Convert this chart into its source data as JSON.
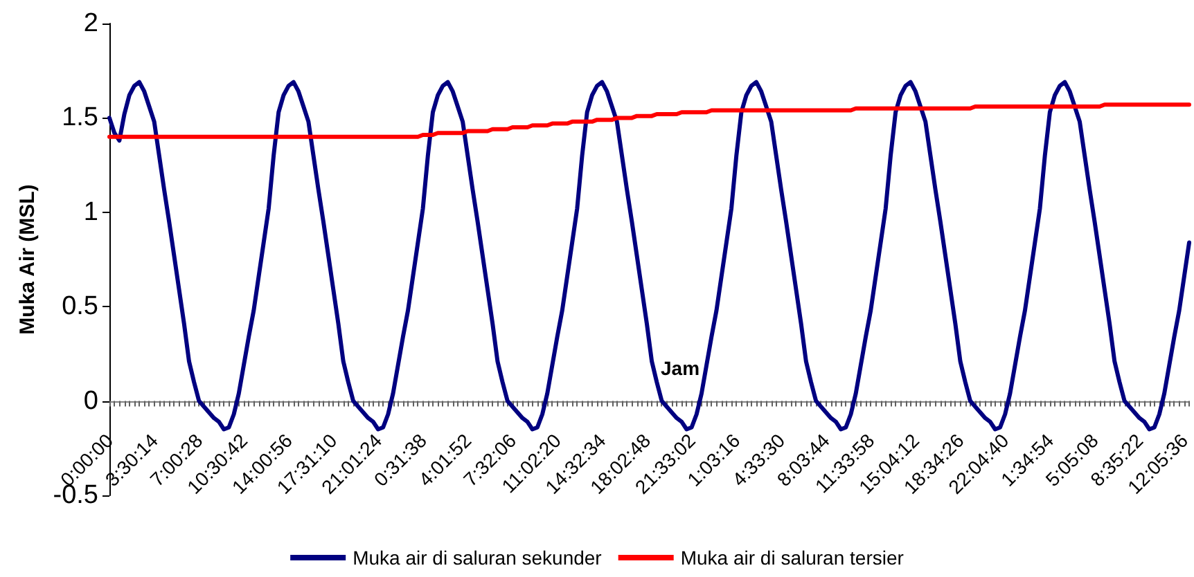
{
  "chart_data": {
    "type": "line",
    "xlabel": "Jam",
    "ylabel": "Muka Air (MSL)",
    "ylim": [
      -0.5,
      2
    ],
    "yticks": [
      -0.5,
      0,
      0.5,
      1,
      1.5,
      2
    ],
    "categories": [
      "0:00:00",
      null,
      null,
      null,
      null,
      null,
      null,
      null,
      null,
      "3:30:14",
      null,
      null,
      null,
      null,
      null,
      null,
      null,
      null,
      "7:00:28",
      null,
      null,
      null,
      null,
      null,
      null,
      null,
      null,
      "10:30:42",
      null,
      null,
      null,
      null,
      null,
      null,
      null,
      null,
      "14:00:56",
      null,
      null,
      null,
      null,
      null,
      null,
      null,
      null,
      "17:31:10",
      null,
      null,
      null,
      null,
      null,
      null,
      null,
      null,
      "21:01:24",
      null,
      null,
      null,
      null,
      null,
      null,
      null,
      null,
      "0:31:38",
      null,
      null,
      null,
      null,
      null,
      null,
      null,
      null,
      "4:01:52",
      null,
      null,
      null,
      null,
      null,
      null,
      null,
      null,
      "7:32:06",
      null,
      null,
      null,
      null,
      null,
      null,
      null,
      null,
      "11:02:20",
      null,
      null,
      null,
      null,
      null,
      null,
      null,
      null,
      "14:32:34",
      null,
      null,
      null,
      null,
      null,
      null,
      null,
      null,
      "18:02:48",
      null,
      null,
      null,
      null,
      null,
      null,
      null,
      null,
      "21:33:02",
      null,
      null,
      null,
      null,
      null,
      null,
      null,
      null,
      "1:03:16",
      null,
      null,
      null,
      null,
      null,
      null,
      null,
      null,
      "4:33:30",
      null,
      null,
      null,
      null,
      null,
      null,
      null,
      null,
      "8:03:44",
      null,
      null,
      null,
      null,
      null,
      null,
      null,
      null,
      "11:33:58",
      null,
      null,
      null,
      null,
      null,
      null,
      null,
      null,
      "15:04:12",
      null,
      null,
      null,
      null,
      null,
      null,
      null,
      null,
      "18:34:26",
      null,
      null,
      null,
      null,
      null,
      null,
      null,
      null,
      "22:04:40",
      null,
      null,
      null,
      null,
      null,
      null,
      null,
      null,
      "1:34:54",
      null,
      null,
      null,
      null,
      null,
      null,
      null,
      null,
      "5:05:08",
      null,
      null,
      null,
      null,
      null,
      null,
      null,
      null,
      "8:35:22",
      null,
      null,
      null,
      null,
      null,
      null,
      null,
      null,
      "12:05:36",
      null
    ],
    "legend": "bottom",
    "marker": "none",
    "line_style": "solid",
    "series": [
      {
        "name": "Muka air di saluran sekunder",
        "color": "#000080",
        "values": [
          1.5,
          1.42,
          1.38,
          1.52,
          1.62,
          1.67,
          1.69,
          1.64,
          1.56,
          1.48,
          1.3,
          1.12,
          0.95,
          0.77,
          0.59,
          0.41,
          0.21,
          0.1,
          0.0,
          -0.03,
          -0.06,
          -0.09,
          -0.11,
          -0.15,
          -0.14,
          -0.07,
          0.04,
          0.19,
          0.34,
          0.48,
          0.66,
          0.84,
          1.02,
          1.3,
          1.53,
          1.62,
          1.67,
          1.69,
          1.64,
          1.56,
          1.48,
          1.3,
          1.12,
          0.95,
          0.77,
          0.59,
          0.41,
          0.21,
          0.1,
          0.0,
          -0.03,
          -0.06,
          -0.09,
          -0.11,
          -0.15,
          -0.14,
          -0.07,
          0.04,
          0.19,
          0.34,
          0.48,
          0.66,
          0.84,
          1.02,
          1.3,
          1.53,
          1.62,
          1.67,
          1.69,
          1.64,
          1.56,
          1.48,
          1.3,
          1.12,
          0.95,
          0.77,
          0.59,
          0.41,
          0.21,
          0.1,
          0.0,
          -0.03,
          -0.06,
          -0.09,
          -0.11,
          -0.15,
          -0.14,
          -0.07,
          0.04,
          0.19,
          0.34,
          0.48,
          0.66,
          0.84,
          1.02,
          1.3,
          1.53,
          1.62,
          1.67,
          1.69,
          1.64,
          1.56,
          1.48,
          1.3,
          1.12,
          0.95,
          0.77,
          0.59,
          0.41,
          0.21,
          0.1,
          0.0,
          -0.03,
          -0.06,
          -0.09,
          -0.11,
          -0.15,
          -0.14,
          -0.07,
          0.04,
          0.19,
          0.34,
          0.48,
          0.66,
          0.84,
          1.02,
          1.3,
          1.53,
          1.62,
          1.67,
          1.69,
          1.64,
          1.56,
          1.48,
          1.3,
          1.12,
          0.95,
          0.77,
          0.59,
          0.41,
          0.21,
          0.1,
          0.0,
          -0.03,
          -0.06,
          -0.09,
          -0.11,
          -0.15,
          -0.14,
          -0.07,
          0.04,
          0.19,
          0.34,
          0.48,
          0.66,
          0.84,
          1.02,
          1.3,
          1.53,
          1.62,
          1.67,
          1.69,
          1.64,
          1.56,
          1.48,
          1.3,
          1.12,
          0.95,
          0.77,
          0.59,
          0.41,
          0.21,
          0.1,
          0.0,
          -0.03,
          -0.06,
          -0.09,
          -0.11,
          -0.15,
          -0.14,
          -0.07,
          0.04,
          0.19,
          0.34,
          0.48,
          0.66,
          0.84,
          1.02,
          1.3,
          1.53,
          1.62,
          1.67,
          1.69,
          1.64,
          1.56,
          1.48,
          1.3,
          1.12,
          0.95,
          0.77,
          0.59,
          0.41,
          0.21,
          0.1,
          0.0,
          -0.03,
          -0.06,
          -0.09,
          -0.11,
          -0.15,
          -0.14,
          -0.07,
          0.04,
          0.19,
          0.34,
          0.48,
          0.66,
          0.84
        ]
      },
      {
        "name": "Muka air di saluran tersier",
        "color": "#ff0000",
        "values": [
          1.4,
          1.4,
          1.4,
          1.4,
          1.4,
          1.4,
          1.4,
          1.4,
          1.4,
          1.4,
          1.4,
          1.4,
          1.4,
          1.4,
          1.4,
          1.4,
          1.4,
          1.4,
          1.4,
          1.4,
          1.4,
          1.4,
          1.4,
          1.4,
          1.4,
          1.4,
          1.4,
          1.4,
          1.4,
          1.4,
          1.4,
          1.4,
          1.4,
          1.4,
          1.4,
          1.4,
          1.4,
          1.4,
          1.4,
          1.4,
          1.4,
          1.4,
          1.4,
          1.4,
          1.4,
          1.4,
          1.4,
          1.4,
          1.4,
          1.4,
          1.4,
          1.4,
          1.4,
          1.4,
          1.4,
          1.4,
          1.4,
          1.4,
          1.4,
          1.4,
          1.4,
          1.4,
          1.4,
          1.41,
          1.41,
          1.41,
          1.42,
          1.42,
          1.42,
          1.42,
          1.42,
          1.42,
          1.43,
          1.43,
          1.43,
          1.43,
          1.43,
          1.44,
          1.44,
          1.44,
          1.44,
          1.45,
          1.45,
          1.45,
          1.45,
          1.46,
          1.46,
          1.46,
          1.46,
          1.47,
          1.47,
          1.47,
          1.47,
          1.48,
          1.48,
          1.48,
          1.48,
          1.48,
          1.49,
          1.49,
          1.49,
          1.49,
          1.5,
          1.5,
          1.5,
          1.5,
          1.51,
          1.51,
          1.51,
          1.51,
          1.52,
          1.52,
          1.52,
          1.52,
          1.52,
          1.53,
          1.53,
          1.53,
          1.53,
          1.53,
          1.53,
          1.54,
          1.54,
          1.54,
          1.54,
          1.54,
          1.54,
          1.54,
          1.54,
          1.54,
          1.54,
          1.54,
          1.54,
          1.54,
          1.54,
          1.54,
          1.54,
          1.54,
          1.54,
          1.54,
          1.54,
          1.54,
          1.54,
          1.54,
          1.54,
          1.54,
          1.54,
          1.54,
          1.54,
          1.54,
          1.55,
          1.55,
          1.55,
          1.55,
          1.55,
          1.55,
          1.55,
          1.55,
          1.55,
          1.55,
          1.55,
          1.55,
          1.55,
          1.55,
          1.55,
          1.55,
          1.55,
          1.55,
          1.55,
          1.55,
          1.55,
          1.55,
          1.55,
          1.55,
          1.56,
          1.56,
          1.56,
          1.56,
          1.56,
          1.56,
          1.56,
          1.56,
          1.56,
          1.56,
          1.56,
          1.56,
          1.56,
          1.56,
          1.56,
          1.56,
          1.56,
          1.56,
          1.56,
          1.56,
          1.56,
          1.56,
          1.56,
          1.56,
          1.56,
          1.56,
          1.57,
          1.57,
          1.57,
          1.57,
          1.57,
          1.57,
          1.57,
          1.57,
          1.57,
          1.57,
          1.57,
          1.57,
          1.57,
          1.57,
          1.57,
          1.57,
          1.57,
          1.57
        ]
      }
    ]
  }
}
